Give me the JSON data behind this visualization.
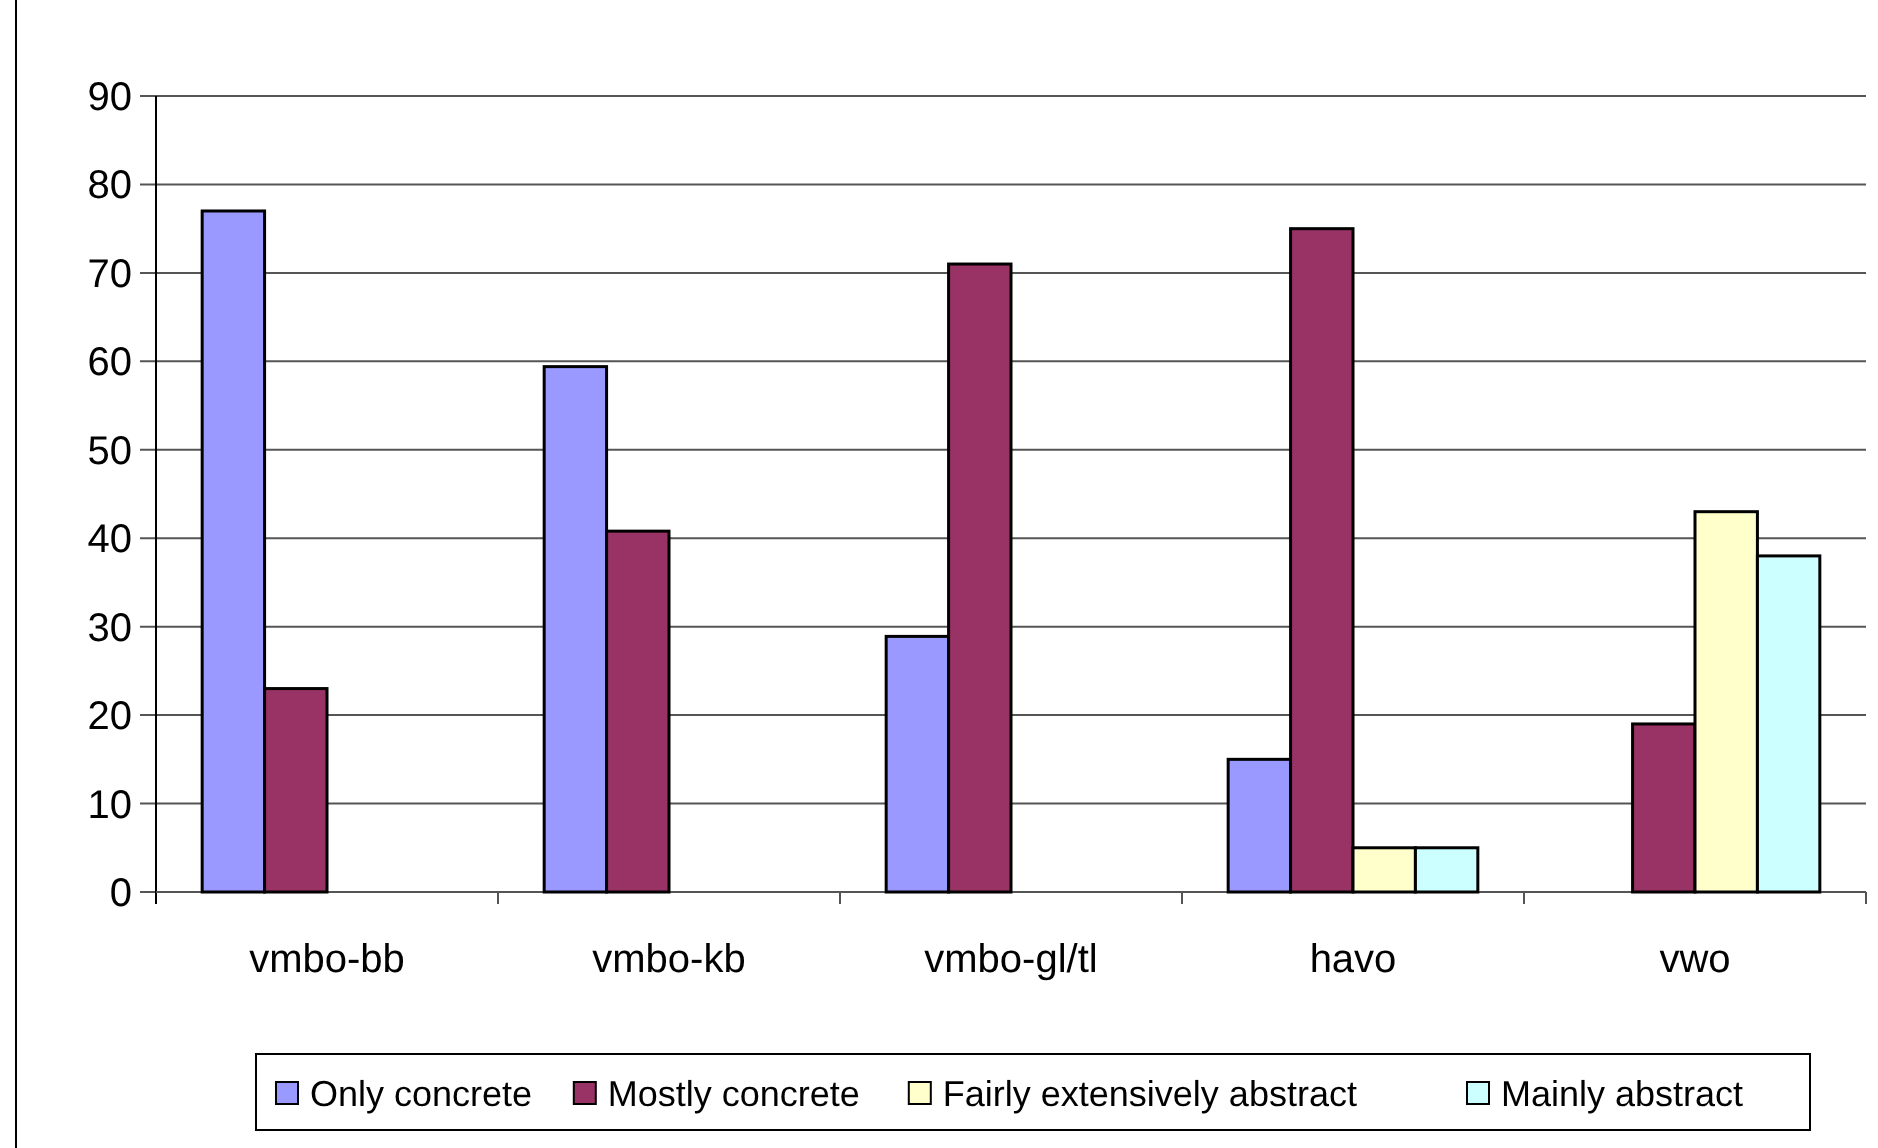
{
  "chart_data": {
    "type": "bar",
    "categories": [
      "vmbo-bb",
      "vmbo-kb",
      "vmbo-gl/tl",
      "havo",
      "vwo"
    ],
    "series": [
      {
        "name": "Only concrete",
        "color": "#9999ff",
        "values": [
          77,
          59.4,
          28.9,
          15,
          null
        ]
      },
      {
        "name": "Mostly concrete",
        "color": "#993366",
        "values": [
          23,
          40.8,
          71,
          75,
          19
        ]
      },
      {
        "name": "Fairly extensively abstract",
        "color": "#ffffcc",
        "values": [
          null,
          null,
          null,
          5,
          43
        ]
      },
      {
        "name": "Mainly abstract",
        "color": "#ccffff",
        "values": [
          null,
          null,
          null,
          5,
          38
        ]
      }
    ],
    "ylim": [
      0,
      90
    ],
    "yticks": [
      0,
      10,
      20,
      30,
      40,
      50,
      60,
      70,
      80,
      90
    ],
    "grid": "y",
    "legend": "bottom"
  }
}
